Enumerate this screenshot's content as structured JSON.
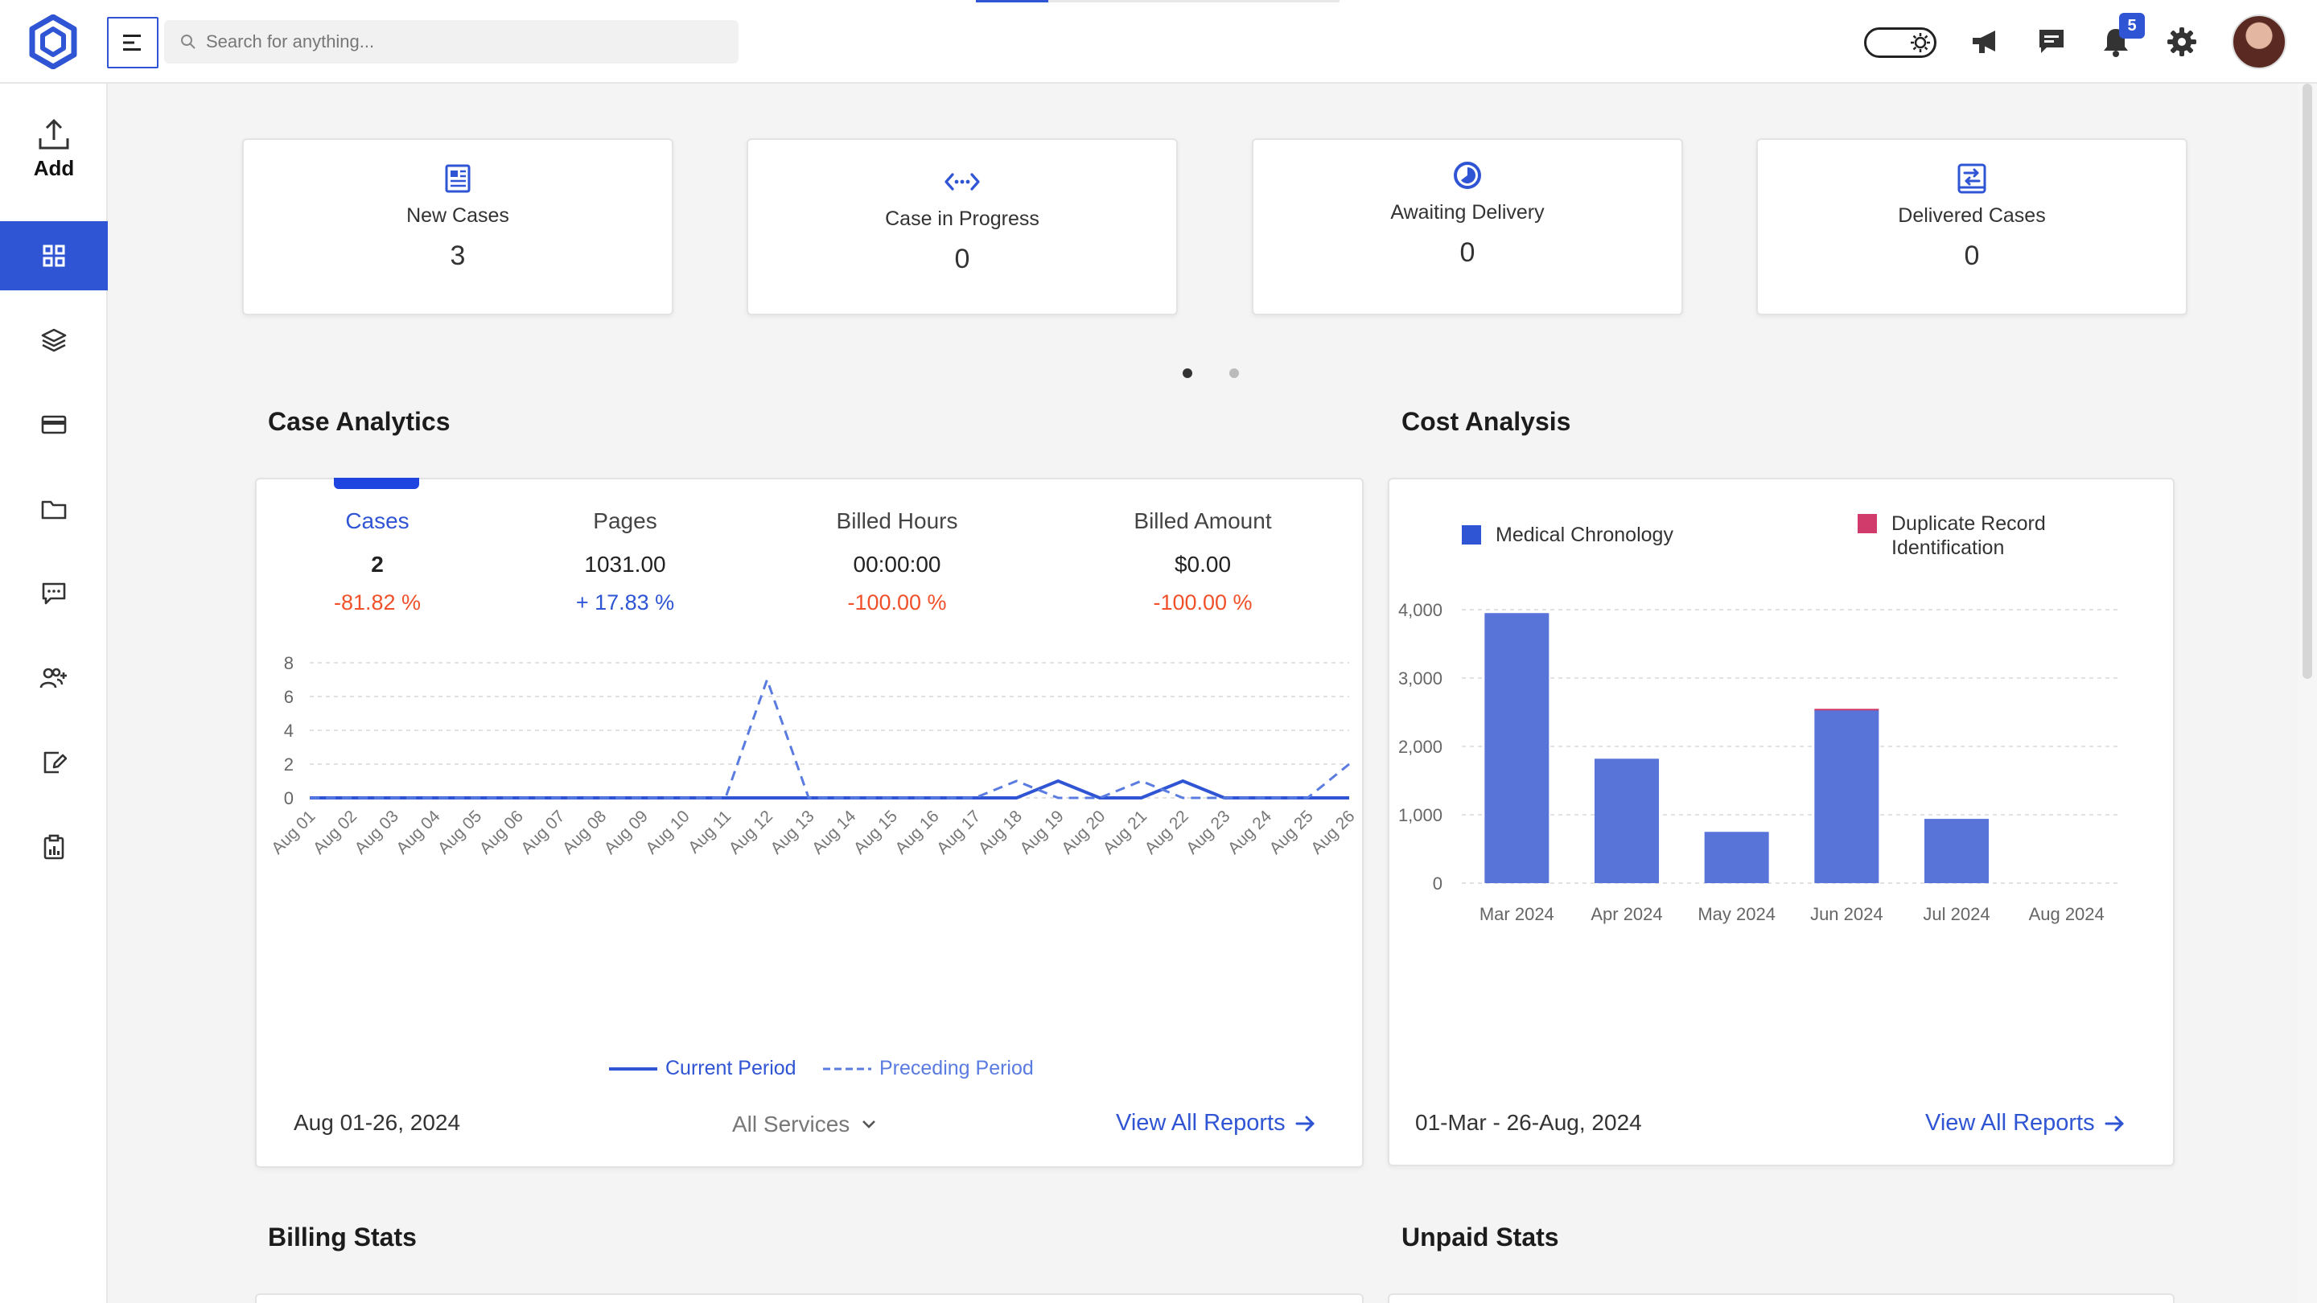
{
  "search": {
    "placeholder": "Search for anything..."
  },
  "header": {
    "notification_count": "5"
  },
  "sidebar": {
    "add_label": "Add"
  },
  "stats": [
    {
      "icon": "document-icon",
      "label": "New Cases",
      "value": "3"
    },
    {
      "icon": "code-arrows-icon",
      "label": "Case in Progress",
      "value": "0"
    },
    {
      "icon": "clock-half-icon",
      "label": "Awaiting Delivery",
      "value": "0"
    },
    {
      "icon": "delivery-tray-icon",
      "label": "Delivered Cases",
      "value": "0"
    }
  ],
  "case_analytics": {
    "title": "Case Analytics",
    "metrics": [
      {
        "label": "Cases",
        "value": "2",
        "delta": "-81.82 %"
      },
      {
        "label": "Pages",
        "value": "1031.00",
        "delta": "+ 17.83 %"
      },
      {
        "label": "Billed Hours",
        "value": "00:00:00",
        "delta": "-100.00 %"
      },
      {
        "label": "Billed Amount",
        "value": "$0.00",
        "delta": "-100.00 %"
      }
    ],
    "date_range": "Aug 01-26, 2024",
    "services_label": "All Services",
    "view_all": "View All Reports"
  },
  "cost_analysis": {
    "title": "Cost Analysis",
    "date_range": "01-Mar - 26-Aug, 2024",
    "view_all": "View All Reports"
  },
  "billing_stats": {
    "title": "Billing Stats"
  },
  "unpaid_stats": {
    "title": "Unpaid Stats"
  },
  "colors": {
    "accent": "#2f55d4",
    "bar": "#5874d8",
    "duplicate": "#d03b6b",
    "negative": "#f0502a"
  },
  "chart_data": [
    {
      "type": "line",
      "x": [
        "Aug 01",
        "Aug 02",
        "Aug 03",
        "Aug 04",
        "Aug 05",
        "Aug 06",
        "Aug 07",
        "Aug 08",
        "Aug 09",
        "Aug 10",
        "Aug 11",
        "Aug 12",
        "Aug 13",
        "Aug 14",
        "Aug 15",
        "Aug 16",
        "Aug 17",
        "Aug 18",
        "Aug 19",
        "Aug 20",
        "Aug 21",
        "Aug 22",
        "Aug 23",
        "Aug 24",
        "Aug 25",
        "Aug 26"
      ],
      "series": [
        {
          "name": "Current Period",
          "style": "solid",
          "values": [
            0,
            0,
            0,
            0,
            0,
            0,
            0,
            0,
            0,
            0,
            0,
            0,
            0,
            0,
            0,
            0,
            0,
            0,
            1,
            0,
            0,
            1,
            0,
            0,
            0,
            0
          ]
        },
        {
          "name": "Preceding Period",
          "style": "dashed",
          "values": [
            0,
            0,
            0,
            0,
            0,
            0,
            0,
            0,
            0,
            0,
            0,
            7,
            0,
            0,
            0,
            0,
            0,
            1,
            0,
            0,
            1,
            0,
            0,
            0,
            0,
            2
          ]
        }
      ],
      "yticks": [
        0,
        2,
        4,
        6,
        8
      ],
      "ylim": [
        0,
        8
      ],
      "grid": true,
      "legend": "bottom"
    },
    {
      "type": "bar",
      "stacked": true,
      "categories": [
        "Mar 2024",
        "Apr 2024",
        "May 2024",
        "Jun 2024",
        "Jul 2024",
        "Aug 2024"
      ],
      "series": [
        {
          "name": "Medical Chronology",
          "values": [
            3950,
            1820,
            750,
            2530,
            940,
            0
          ]
        },
        {
          "name": "Duplicate Record Identification",
          "values": [
            0,
            0,
            0,
            20,
            0,
            0
          ]
        }
      ],
      "yticks": [
        "0",
        "1,000",
        "2,000",
        "3,000",
        "4,000"
      ],
      "ylim": [
        0,
        4000
      ],
      "grid": true,
      "legend": "top"
    }
  ]
}
